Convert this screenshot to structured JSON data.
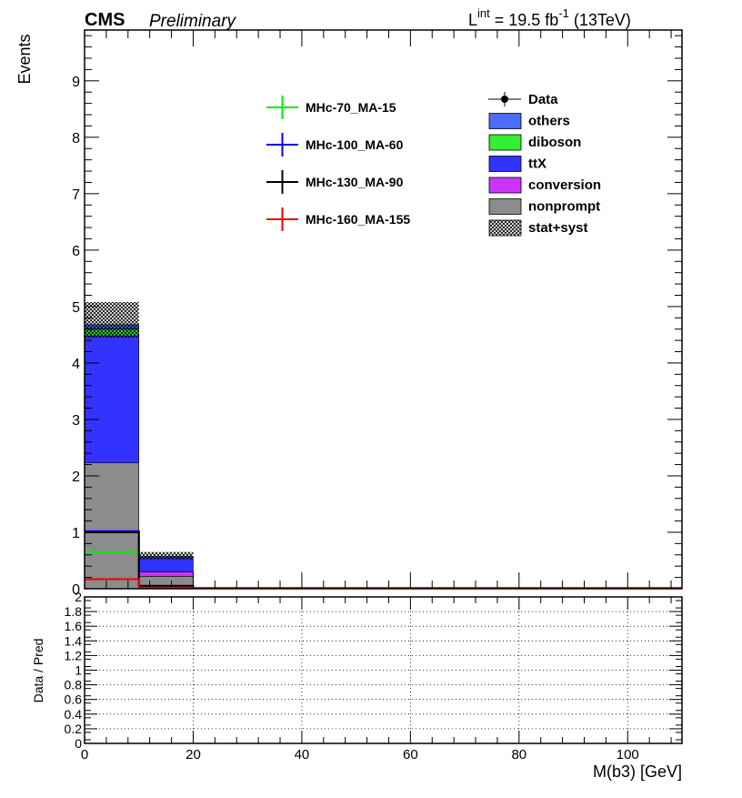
{
  "header": {
    "experiment": "CMS",
    "status": "Preliminary",
    "lumi_prefix": "L",
    "lumi_sup": "int",
    "lumi_value": " = 19.5 fb",
    "lumi_exp": "-1",
    "lumi_energy": " (13TeV)"
  },
  "chart_data": [
    {
      "type": "bar",
      "stacked": true,
      "ylabel": "Events",
      "xlim": [
        0,
        110
      ],
      "ylim": [
        0,
        9.9
      ],
      "bin_edges": [
        0,
        10,
        20,
        30,
        40,
        50,
        60,
        70,
        80,
        90,
        100,
        110
      ],
      "yticks": [
        "0",
        "1",
        "2",
        "3",
        "4",
        "5",
        "6",
        "7",
        "8",
        "9"
      ],
      "series": [
        {
          "name": "nonprompt",
          "color": "#8c8c8c",
          "values": [
            2.23,
            0.22,
            0,
            0,
            0,
            0,
            0,
            0,
            0,
            0,
            0
          ]
        },
        {
          "name": "conversion",
          "color": "#cc33ff",
          "values": [
            0,
            0.08,
            0,
            0,
            0,
            0,
            0,
            0,
            0,
            0,
            0
          ]
        },
        {
          "name": "ttX",
          "color": "#3333ff",
          "values": [
            2.25,
            0.25,
            0,
            0,
            0,
            0,
            0,
            0,
            0,
            0,
            0
          ]
        },
        {
          "name": "diboson",
          "color": "#33ee33",
          "values": [
            0.12,
            0.0,
            0,
            0,
            0,
            0,
            0,
            0,
            0,
            0,
            0
          ]
        },
        {
          "name": "others",
          "color": "#4a6cff",
          "values": [
            0.08,
            0.02,
            0,
            0,
            0,
            0,
            0,
            0,
            0,
            0,
            0
          ]
        }
      ],
      "uncertainty_band": {
        "name": "stat+syst",
        "low": [
          4.45,
          0.52,
          0,
          0,
          0,
          0,
          0,
          0,
          0,
          0,
          0
        ],
        "high": [
          5.08,
          0.65,
          0,
          0,
          0,
          0,
          0,
          0,
          0,
          0,
          0
        ]
      },
      "data": {
        "name": "Data",
        "values": [
          0,
          0,
          0,
          0,
          0,
          0,
          0,
          0,
          0,
          0,
          0
        ]
      },
      "signals": [
        {
          "name": "MHc-70_MA-15",
          "color": "#00ee00",
          "values": [
            0.65,
            0.04,
            0.01,
            0.01,
            0.01,
            0.01,
            0.01,
            0.01,
            0.01,
            0.01,
            0.01
          ]
        },
        {
          "name": "MHc-100_MA-60",
          "color": "#0000ee",
          "values": [
            1.02,
            0.05,
            0.01,
            0.01,
            0.01,
            0.01,
            0.01,
            0.01,
            0.01,
            0.01,
            0.01
          ]
        },
        {
          "name": "MHc-130_MA-90",
          "color": "#000000",
          "values": [
            1.0,
            0.05,
            0.01,
            0.01,
            0.01,
            0.01,
            0.01,
            0.01,
            0.01,
            0.01,
            0.01
          ]
        },
        {
          "name": "MHc-160_MA-155",
          "color": "#ee0000",
          "values": [
            0.17,
            0.02,
            0.01,
            0.01,
            0.01,
            0.01,
            0.01,
            0.01,
            0.01,
            0.01,
            0.01
          ]
        }
      ],
      "legend_main": [
        "Data",
        "others",
        "diboson",
        "ttX",
        "conversion",
        "nonprompt",
        "stat+syst"
      ],
      "legend_signals": [
        "MHc-70_MA-15",
        "MHc-100_MA-60",
        "MHc-130_MA-90",
        "MHc-160_MA-155"
      ],
      "legend_position": "top"
    },
    {
      "type": "scatter",
      "xlabel": "M(b3) [GeV]",
      "ylabel": "Data / Pred",
      "xlim": [
        0,
        110
      ],
      "ylim": [
        0,
        2
      ],
      "grid": true,
      "xticks": [
        "0",
        "20",
        "40",
        "60",
        "80",
        "100"
      ],
      "yticks": [
        "0",
        "0.2",
        "0.4",
        "0.6",
        "0.8",
        "1",
        "1.2",
        "1.4",
        "1.6",
        "1.8",
        "2"
      ],
      "values": []
    }
  ]
}
